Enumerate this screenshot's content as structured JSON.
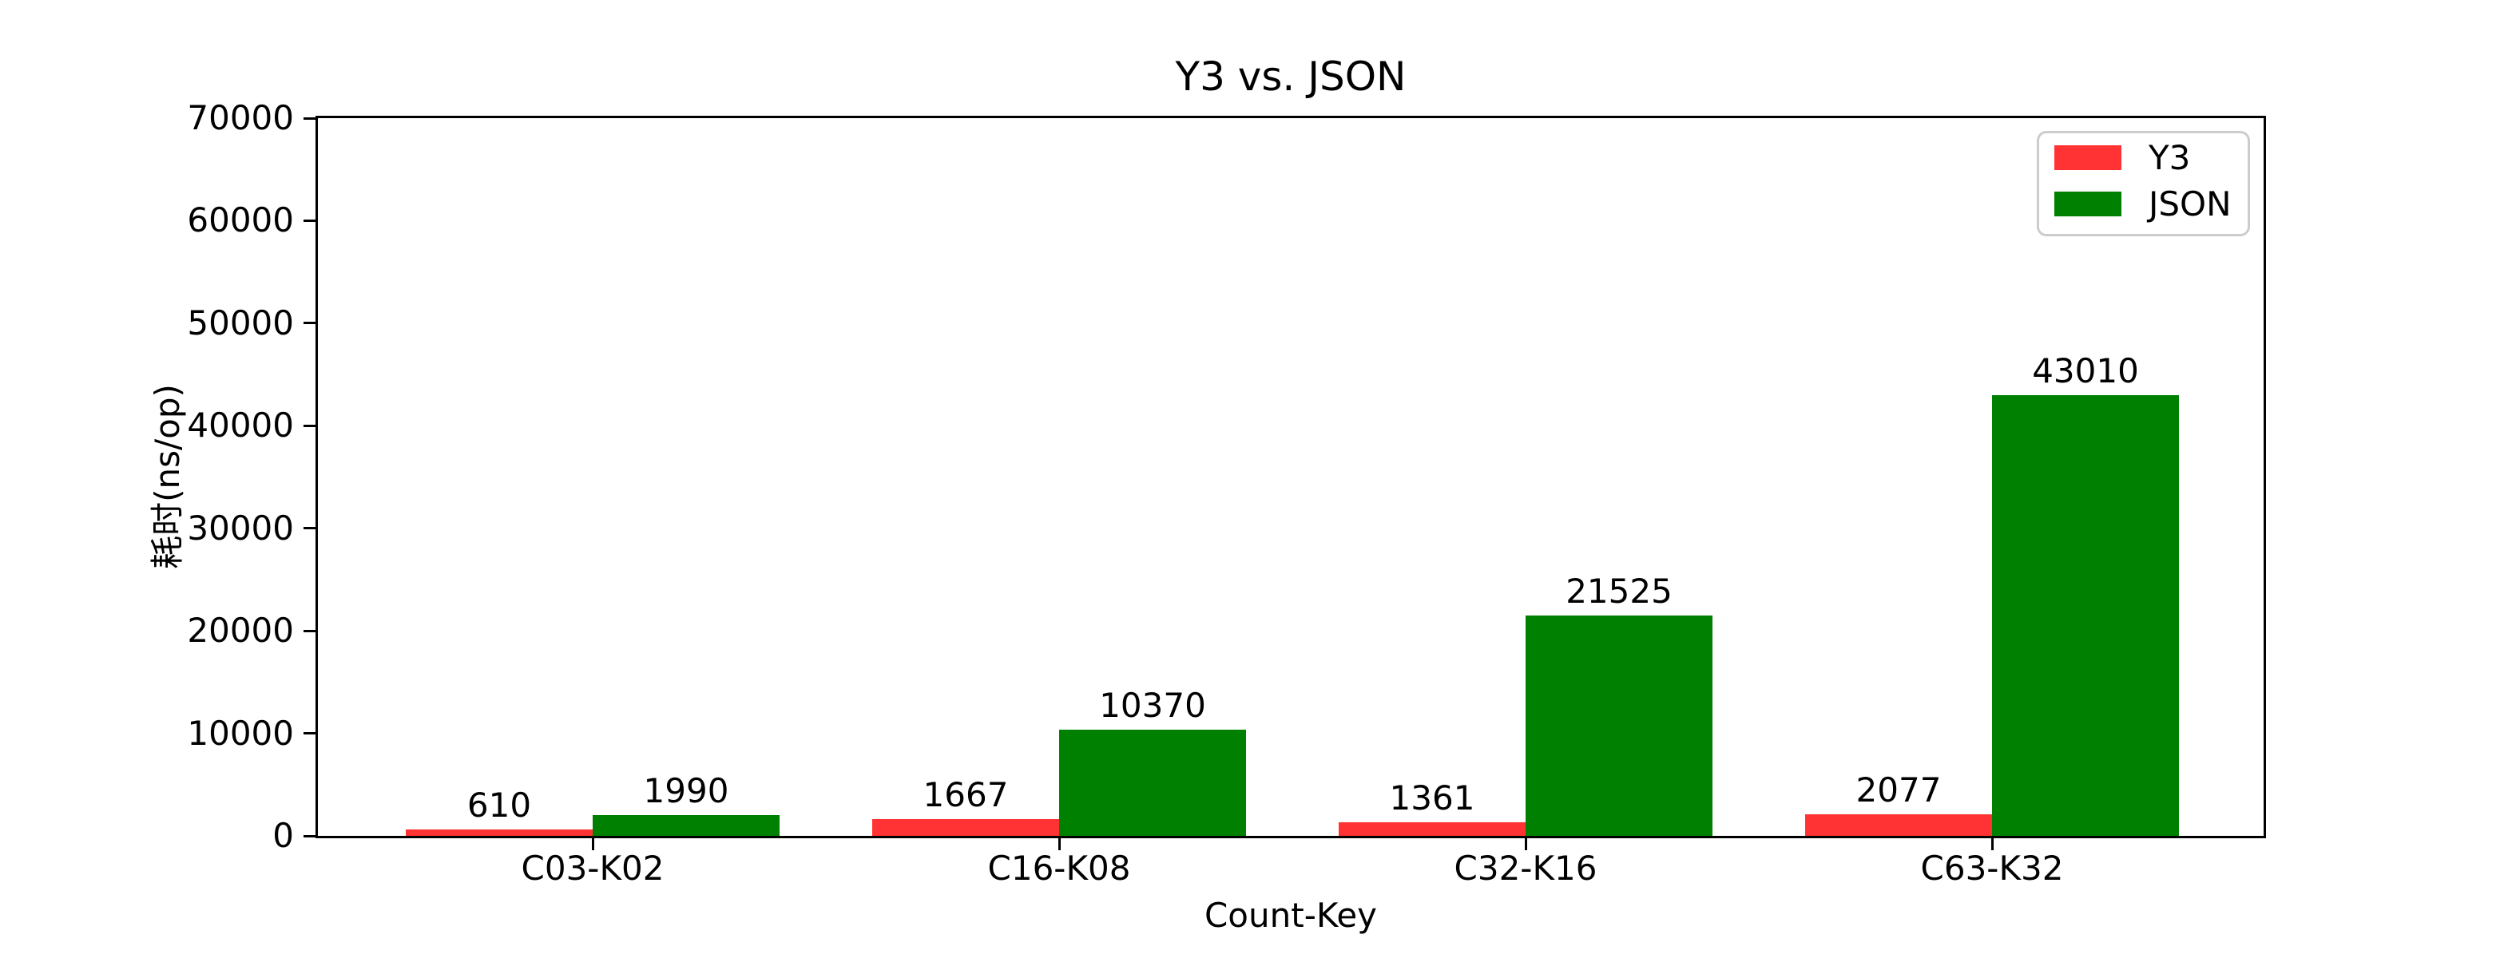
{
  "chart_data": {
    "type": "bar",
    "title": "Y3 vs. JSON",
    "xlabel": "Count-Key",
    "ylabel": "耗时(ns/op)",
    "categories": [
      "C03-K02",
      "C16-K08",
      "C32-K16",
      "C63-K32"
    ],
    "series": [
      {
        "name": "Y3",
        "color": "#ff3333",
        "values": [
          610,
          1667,
          1361,
          2077
        ]
      },
      {
        "name": "JSON",
        "color": "#008000",
        "values": [
          1990,
          10370,
          21525,
          43010
        ]
      }
    ],
    "bar_value_labels": true,
    "ylim": [
      0,
      70000
    ],
    "yticks": [
      0,
      10000,
      20000,
      30000,
      40000,
      50000,
      60000,
      70000
    ],
    "grid": false,
    "legend": {
      "position": "upper right",
      "entries": [
        "Y3",
        "JSON"
      ]
    },
    "colors": {
      "axis": "#000000",
      "text": "#000000",
      "legend_border": "#cccccc",
      "background": "#ffffff"
    }
  }
}
